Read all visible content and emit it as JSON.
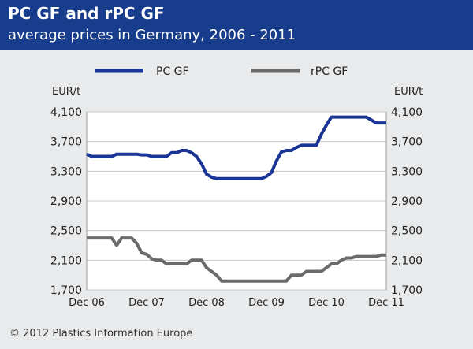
{
  "header": {
    "title": "PC GF and rPC GF",
    "subtitle": "average prices in Germany, 2006 - 2011"
  },
  "footer": {
    "copyright": "© 2012 Plastics Information Europe"
  },
  "colors": {
    "header_bg": "#183d8c",
    "pc_line": "#1a3596",
    "rpc_line": "#6b6b6b"
  },
  "chart_data": {
    "type": "line",
    "title": "PC GF and rPC GF",
    "subtitle": "average prices in Germany, 2006 - 2011",
    "ylabel_left": "EUR/t",
    "ylabel_right": "EUR/t",
    "ylim": [
      1700,
      4100
    ],
    "yticks": [
      4100,
      3700,
      3300,
      2900,
      2500,
      2100,
      1700
    ],
    "ytick_labels": [
      "4,100",
      "3,700",
      "3,300",
      "2,900",
      "2,500",
      "2,100",
      "1,700"
    ],
    "x_labels": [
      "Dec 06",
      "Dec 07",
      "Dec 08",
      "Dec 09",
      "Dec 10",
      "Dec 11"
    ],
    "grid": "horizontal",
    "legend": "top",
    "series": [
      {
        "name": "PC GF",
        "values": [
          3530,
          3500,
          3500,
          3500,
          3500,
          3500,
          3530,
          3530,
          3530,
          3530,
          3530,
          3520,
          3520,
          3500,
          3500,
          3500,
          3500,
          3550,
          3550,
          3580,
          3580,
          3550,
          3500,
          3400,
          3260,
          3220,
          3200,
          3200,
          3200,
          3200,
          3200,
          3200,
          3200,
          3200,
          3200,
          3200,
          3230,
          3280,
          3440,
          3560,
          3580,
          3580,
          3620,
          3650,
          3650,
          3650,
          3650,
          3800,
          3920,
          4030,
          4030,
          4030,
          4030,
          4030,
          4030,
          4030,
          4030,
          3990,
          3950,
          3950,
          3950
        ]
      },
      {
        "name": "rPC GF",
        "values": [
          2400,
          2400,
          2400,
          2400,
          2400,
          2400,
          2300,
          2400,
          2400,
          2400,
          2330,
          2200,
          2180,
          2120,
          2100,
          2100,
          2050,
          2050,
          2050,
          2050,
          2050,
          2100,
          2100,
          2100,
          2000,
          1950,
          1900,
          1820,
          1820,
          1820,
          1820,
          1820,
          1820,
          1820,
          1820,
          1820,
          1820,
          1820,
          1820,
          1820,
          1820,
          1900,
          1900,
          1900,
          1950,
          1950,
          1950,
          1950,
          2000,
          2050,
          2050,
          2100,
          2130,
          2130,
          2150,
          2150,
          2150,
          2150,
          2150,
          2170,
          2170
        ]
      }
    ]
  }
}
